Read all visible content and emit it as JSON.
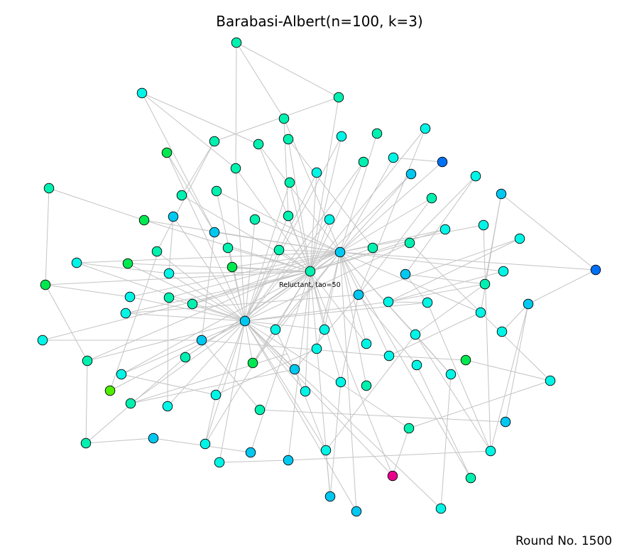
{
  "title": "Barabasi-Albert(n=100, k=3)",
  "round_label": "Round No. 1500",
  "node_label": "Reluctant, tao=50",
  "colors": {
    "cyan": "#00f5e6",
    "teal": "#00f0b0",
    "sky": "#00c8f0",
    "green": "#00e850",
    "blue": "#0070f5",
    "lime": "#50ee00",
    "magenta": "#e8008c",
    "edge": "#c4c4c4"
  }
}
